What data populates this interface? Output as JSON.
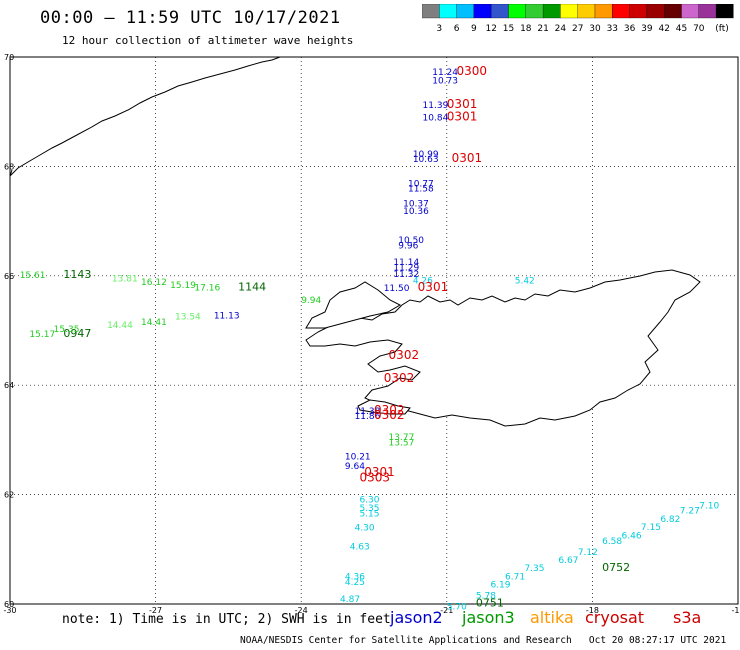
{
  "header": {
    "title": "00:00 – 11:59 UTC 10/17/2021",
    "subtitle": "12 hour collection of altimeter wave heights"
  },
  "colorbar": {
    "colors": [
      "#7f7f7f",
      "#00ffff",
      "#00bfff",
      "#0000ff",
      "#3355cc",
      "#00ff00",
      "#33cc33",
      "#009900",
      "#ffff00",
      "#ffcc00",
      "#ff9900",
      "#ff0000",
      "#cc0000",
      "#990000",
      "#660000",
      "#cc66cc",
      "#993399",
      "#000000"
    ],
    "labels": [
      "3",
      "6",
      "9",
      "12",
      "15",
      "18",
      "21",
      "24",
      "27",
      "30",
      "33",
      "36",
      "39",
      "42",
      "45",
      "70"
    ],
    "unit": "(ft)"
  },
  "axes": {
    "x_ticks": [
      "-30",
      "-27",
      "-24",
      "-21",
      "-18",
      "-15"
    ],
    "y_ticks": [
      "70",
      "68",
      "66",
      "64",
      "62",
      "60"
    ]
  },
  "labels": {
    "jason2": [
      {
        "text": "11.24",
        "lon": -21.3,
        "lat": 69.67
      },
      {
        "text": "10.73",
        "lon": -21.3,
        "lat": 69.52
      },
      {
        "text": "11.39",
        "lon": -21.5,
        "lat": 69.07
      },
      {
        "text": "10.84",
        "lon": -21.5,
        "lat": 68.84
      },
      {
        "text": "10.99",
        "lon": -21.7,
        "lat": 68.17
      },
      {
        "text": "10.63",
        "lon": -21.7,
        "lat": 68.08
      },
      {
        "text": "10.77",
        "lon": -21.8,
        "lat": 67.63
      },
      {
        "text": "11.58",
        "lon": -21.8,
        "lat": 67.54
      },
      {
        "text": "10.37",
        "lon": -21.9,
        "lat": 67.27
      },
      {
        "text": "10.36",
        "lon": -21.9,
        "lat": 67.13
      },
      {
        "text": "10.50",
        "lon": -22.0,
        "lat": 66.6
      },
      {
        "text": "9.96",
        "lon": -22.0,
        "lat": 66.5
      },
      {
        "text": "11.14",
        "lon": -22.1,
        "lat": 66.2
      },
      {
        "text": "11.29",
        "lon": -22.1,
        "lat": 66.1
      },
      {
        "text": "11.32",
        "lon": -22.1,
        "lat": 65.98
      },
      {
        "text": "11.50",
        "lon": -22.3,
        "lat": 65.72
      },
      {
        "text": "11.13",
        "lon": -25.8,
        "lat": 65.22
      },
      {
        "text": "11.38",
        "lon": -22.9,
        "lat": 63.47
      },
      {
        "text": "11.86",
        "lon": -22.9,
        "lat": 63.38
      },
      {
        "text": "10.21",
        "lon": -23.1,
        "lat": 62.64
      },
      {
        "text": "9.64",
        "lon": -23.1,
        "lat": 62.47
      }
    ],
    "jason3": [
      {
        "text": "15.61",
        "lon": -29.8,
        "lat": 65.96
      },
      {
        "text": "1143",
        "lon": -28.9,
        "lat": 65.96
      },
      {
        "text": "16.12",
        "lon": -27.3,
        "lat": 65.83
      },
      {
        "text": "15.19",
        "lon": -26.7,
        "lat": 65.78
      },
      {
        "text": "17.16",
        "lon": -26.2,
        "lat": 65.73
      },
      {
        "text": "1144",
        "lon": -25.3,
        "lat": 65.73
      },
      {
        "text": "15.17",
        "lon": -29.6,
        "lat": 64.88
      },
      {
        "text": "0947",
        "lon": -28.9,
        "lat": 64.88
      },
      {
        "text": "15.35",
        "lon": -29.1,
        "lat": 64.97
      },
      {
        "text": "14.41",
        "lon": -27.3,
        "lat": 65.1
      },
      {
        "text": "9.94",
        "lon": -24.0,
        "lat": 65.5
      },
      {
        "text": "13.77",
        "lon": -22.2,
        "lat": 63.0
      },
      {
        "text": "13.57",
        "lon": -22.2,
        "lat": 62.9
      }
    ],
    "jason3_other": [
      {
        "text": "14.44",
        "lon": -28.0,
        "lat": 65.05
      },
      {
        "text": "13.81",
        "lon": -27.9,
        "lat": 65.9
      },
      {
        "text": "13.54",
        "lon": -26.6,
        "lat": 65.2
      }
    ],
    "altika": [
      {
        "text": "4.26",
        "lon": -21.7,
        "lat": 65.86
      },
      {
        "text": "5.42",
        "lon": -19.6,
        "lat": 65.86
      },
      {
        "text": "6.30",
        "lon": -22.8,
        "lat": 61.86
      },
      {
        "text": "5.35",
        "lon": -22.8,
        "lat": 61.7
      },
      {
        "text": "5.15",
        "lon": -22.8,
        "lat": 61.6
      },
      {
        "text": "4.30",
        "lon": -22.9,
        "lat": 61.34
      },
      {
        "text": "4.63",
        "lon": -23.0,
        "lat": 61.0
      },
      {
        "text": "4.36",
        "lon": -23.1,
        "lat": 60.45
      },
      {
        "text": "4.25",
        "lon": -23.1,
        "lat": 60.35
      },
      {
        "text": "4.87",
        "lon": -23.2,
        "lat": 60.04
      },
      {
        "text": "5.70",
        "lon": -21.0,
        "lat": 59.9
      },
      {
        "text": "5.78",
        "lon": -20.4,
        "lat": 60.1
      },
      {
        "text": "6.19",
        "lon": -20.1,
        "lat": 60.3
      },
      {
        "text": "6.71",
        "lon": -19.8,
        "lat": 60.45
      },
      {
        "text": "7.35",
        "lon": -19.4,
        "lat": 60.6
      },
      {
        "text": "6.67",
        "lon": -18.7,
        "lat": 60.75
      },
      {
        "text": "7.12",
        "lon": -18.3,
        "lat": 60.9
      },
      {
        "text": "6.58",
        "lon": -17.8,
        "lat": 61.1
      },
      {
        "text": "6.46",
        "lon": -17.4,
        "lat": 61.2
      },
      {
        "text": "7.15",
        "lon": -17.0,
        "lat": 61.35
      },
      {
        "text": "6.82",
        "lon": -16.6,
        "lat": 61.5
      },
      {
        "text": "7.27",
        "lon": -16.2,
        "lat": 61.65
      },
      {
        "text": "7.10",
        "lon": -15.8,
        "lat": 61.75
      }
    ],
    "cryosat": [
      {
        "text": "0300",
        "lon": -20.8,
        "lat": 69.67
      },
      {
        "text": "0301",
        "lon": -21.0,
        "lat": 69.07
      },
      {
        "text": "0301",
        "lon": -21.0,
        "lat": 68.84
      },
      {
        "text": "0301",
        "lon": -20.9,
        "lat": 68.08
      },
      {
        "text": "0301",
        "lon": -21.6,
        "lat": 65.72
      },
      {
        "text": "0302",
        "lon": -22.2,
        "lat": 64.48
      },
      {
        "text": "0302",
        "lon": -22.3,
        "lat": 64.06
      },
      {
        "text": "0302",
        "lon": -22.5,
        "lat": 63.47
      },
      {
        "text": "0302",
        "lon": -22.5,
        "lat": 63.38
      },
      {
        "text": "0301",
        "lon": -22.7,
        "lat": 62.34
      },
      {
        "text": "0303",
        "lon": -22.8,
        "lat": 62.24
      }
    ],
    "green_times": [
      {
        "text": "0751",
        "lon": -20.4,
        "lat": 59.95
      },
      {
        "text": "0752",
        "lon": -17.8,
        "lat": 60.6
      }
    ]
  },
  "note": "note: 1) Time is in UTC; 2) SWH is in feet",
  "satellites": [
    {
      "name": "jason2",
      "color": "#0000cc"
    },
    {
      "name": "jason3",
      "color": "#009900"
    },
    {
      "name": "altika",
      "color": "#ff9900"
    },
    {
      "name": "cryosat",
      "color": "#cc0000"
    },
    {
      "name": "s3a",
      "color": "#cc0000"
    }
  ],
  "credit": "NOAA/NESDIS Center for Satellite Applications and Research",
  "timestamp": "Oct 20 08:27:17 UTC 2021"
}
